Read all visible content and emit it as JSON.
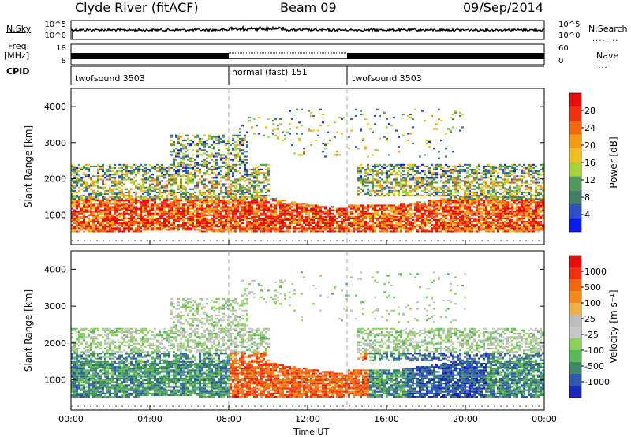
{
  "header": {
    "station": "Clyde River (fitACF)",
    "beam": "Beam 09",
    "date": "09/Sep/2014"
  },
  "side_labels": {
    "nsky": "N.Sky",
    "nsearch": "N.Search",
    "freq_line1": "Freq.",
    "freq_line2": "[MHz]",
    "nave": "Nave",
    "cpid": "CPID"
  },
  "chart_data": [
    {
      "type": "line",
      "name": "noise-panel",
      "left_axis": {
        "label": "N.Sky",
        "ticks": [
          "10^5",
          "10^0"
        ]
      },
      "right_axis": {
        "label": "N.Search",
        "ticks": [
          "10^5",
          "10^0"
        ]
      }
    },
    {
      "type": "line",
      "name": "frequency-panel",
      "left_axis": {
        "label": "Freq. [MHz]",
        "ticks": [
          "18",
          "8"
        ]
      },
      "right_axis": {
        "label": "Nave",
        "ticks": [
          "60",
          "0"
        ]
      }
    },
    {
      "type": "table",
      "name": "cpid-panel",
      "segments": [
        {
          "label": "twofsound 3503",
          "start": "00:00",
          "end": "08:00"
        },
        {
          "label": "normal (fast) 151",
          "start": "08:00",
          "end": "14:00"
        },
        {
          "label": "twofsound 3503",
          "start": "14:00",
          "end": "24:00"
        }
      ]
    },
    {
      "type": "heatmap",
      "name": "power-panel",
      "ylabel": "Slant Range [km]",
      "yticks": [
        1000,
        2000,
        3000,
        4000
      ],
      "ylim": [
        180,
        4500
      ],
      "colorbar": {
        "label": "Power [dB]",
        "ticks": [
          "28",
          "24",
          "20",
          "16",
          "12",
          "8",
          "4"
        ],
        "colors": [
          "#0a1cf0",
          "#2b50c8",
          "#3f7f62",
          "#4e9a5c",
          "#a8d23a",
          "#f0c020",
          "#f59a17",
          "#f06a10",
          "#ee3010",
          "#e80c0c"
        ]
      }
    },
    {
      "type": "heatmap",
      "name": "velocity-panel",
      "ylabel": "Slant Range [km]",
      "xlabel": "Time UT",
      "yticks": [
        1000,
        2000,
        3000,
        4000
      ],
      "ylim": [
        180,
        4500
      ],
      "xticks": [
        "00:00",
        "04:00",
        "08:00",
        "12:00",
        "16:00",
        "20:00",
        "00:00"
      ],
      "colorbar": {
        "label": "Velocity [m s⁻¹]",
        "ticks": [
          "1000",
          "500",
          "100",
          "25",
          "-25",
          "-100",
          "-500",
          "-1000"
        ],
        "colors": [
          "#1a2ab8",
          "#2f58b0",
          "#3e8a66",
          "#5ab85a",
          "#8cd25a",
          "#c8c8c8",
          "#bdbdbd",
          "#f2b04a",
          "#f28a1e",
          "#f06a10",
          "#f03010",
          "#e80c0c"
        ]
      }
    }
  ]
}
